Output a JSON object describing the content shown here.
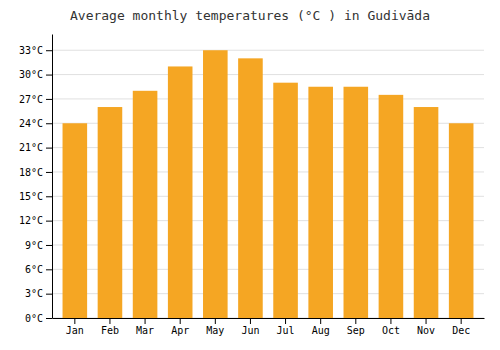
{
  "chart_data": {
    "type": "bar",
    "title": "Average monthly temperatures (°C ) in Gudivāda",
    "categories": [
      "Jan",
      "Feb",
      "Mar",
      "Apr",
      "May",
      "Jun",
      "Jul",
      "Aug",
      "Sep",
      "Oct",
      "Nov",
      "Dec"
    ],
    "values": [
      24,
      26,
      28,
      31,
      33,
      32,
      29,
      28.5,
      28.5,
      27.5,
      26,
      24
    ],
    "color": "#F5A623",
    "ylim": [
      0,
      35
    ],
    "yticks": [
      {
        "value": 0,
        "label": "0°C"
      },
      {
        "value": 3,
        "label": "3°C"
      },
      {
        "value": 6,
        "label": "6°C"
      },
      {
        "value": 9,
        "label": "9°C"
      },
      {
        "value": 12,
        "label": "12°C"
      },
      {
        "value": 15,
        "label": "15°C"
      },
      {
        "value": 18,
        "label": "18°C"
      },
      {
        "value": 21,
        "label": "21°C"
      },
      {
        "value": 24,
        "label": "24°C"
      },
      {
        "value": 27,
        "label": "27°C"
      },
      {
        "value": 30,
        "label": "30°C"
      },
      {
        "value": 33,
        "label": "33°C"
      }
    ],
    "grid": true
  }
}
